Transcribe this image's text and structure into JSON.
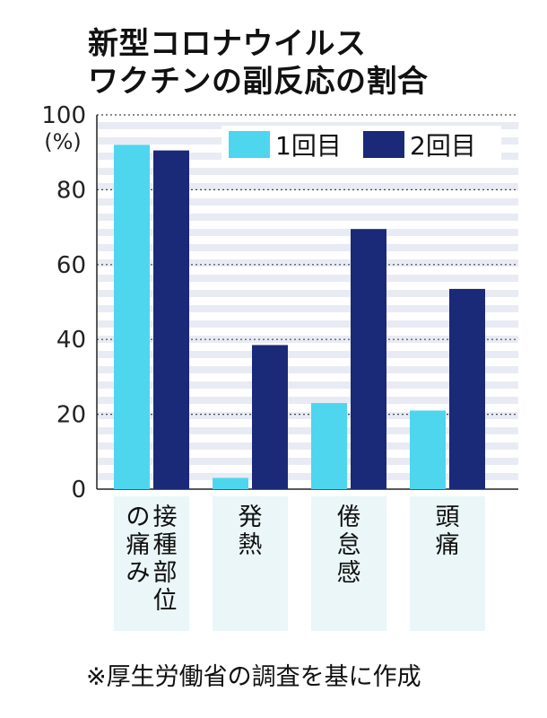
{
  "title_lines": [
    "新型コロナウイルス",
    "ワクチンの副反応の割合"
  ],
  "footnote": "※厚生労働省の調査を基に作成",
  "chart_data": {
    "type": "bar",
    "categories": [
      "接種部位の痛み",
      "発熱",
      "倦怠感",
      "頭痛"
    ],
    "category_labels": [
      [
        "接種部位",
        "の痛み"
      ],
      [
        "発熱"
      ],
      [
        "倦怠感"
      ],
      [
        "頭痛"
      ]
    ],
    "series": [
      {
        "name": "1回目",
        "color": "#4dd6ee",
        "values": [
          92,
          3,
          23,
          21
        ]
      },
      {
        "name": "2回目",
        "color": "#1a2a78",
        "values": [
          90.5,
          38.5,
          69.5,
          53.5
        ]
      }
    ],
    "ylabel": "(%)",
    "ylim": [
      0,
      100
    ],
    "yticks": [
      "0",
      "20",
      "40",
      "60",
      "80",
      "100"
    ],
    "legend": "top-right",
    "grid": true
  }
}
